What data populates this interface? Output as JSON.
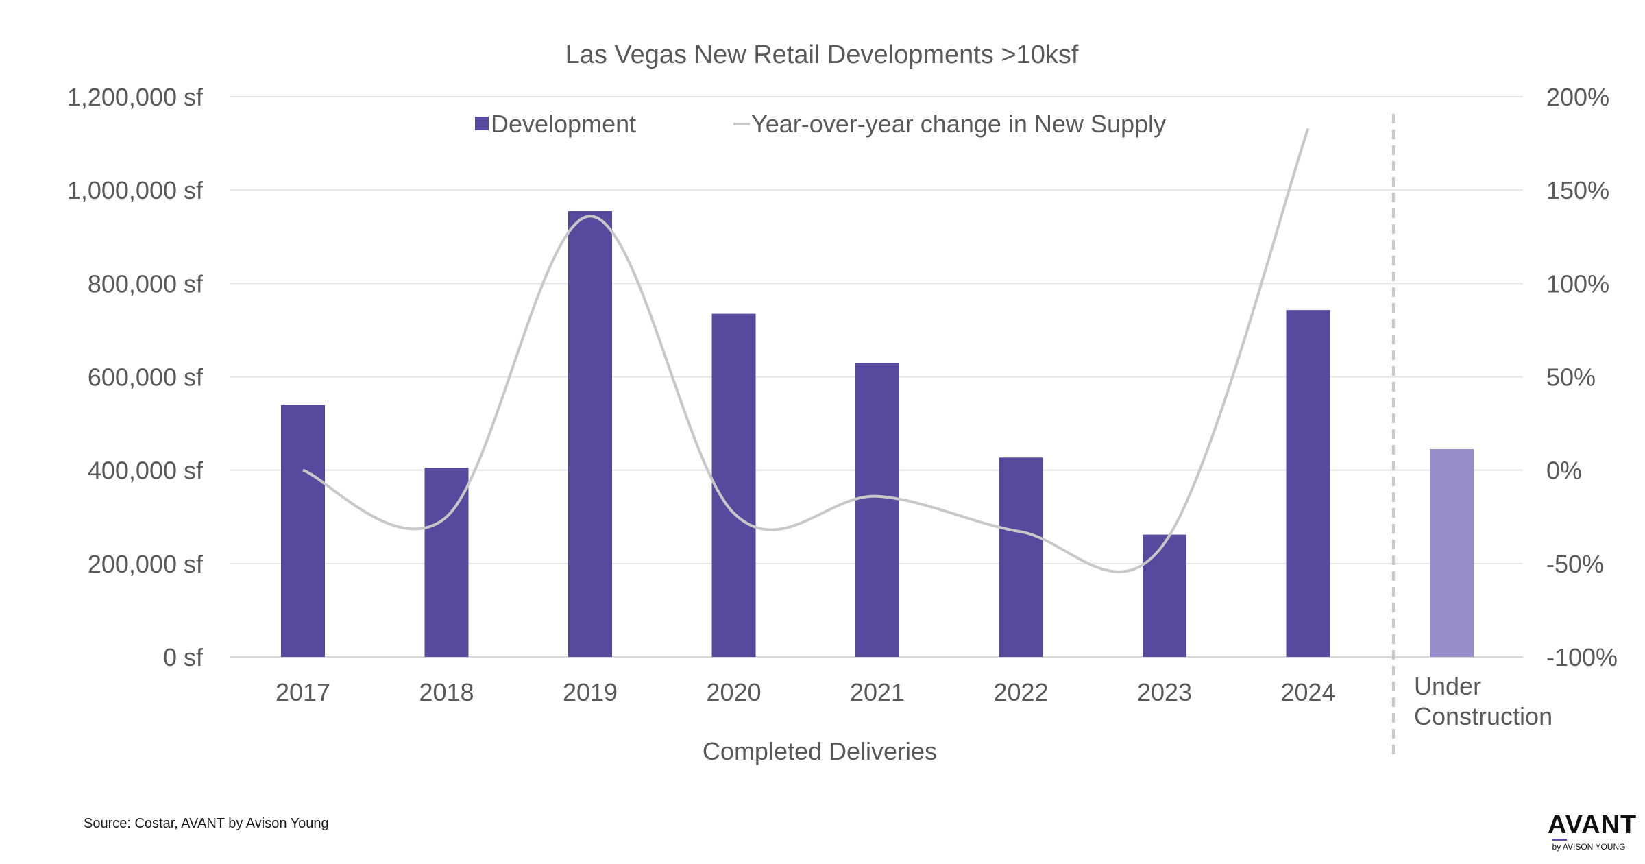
{
  "chart_data": {
    "type": "bar",
    "title": "Las Vegas New Retail Developments >10ksf",
    "categories": [
      "2017",
      "2018",
      "2019",
      "2020",
      "2021",
      "2022",
      "2023",
      "2024",
      "Under Construction"
    ],
    "category_lines": [
      [
        "2017"
      ],
      [
        "2018"
      ],
      [
        "2019"
      ],
      [
        "2020"
      ],
      [
        "2021"
      ],
      [
        "2022"
      ],
      [
        "2023"
      ],
      [
        "2024"
      ],
      [
        "Under",
        "Construction"
      ]
    ],
    "xlabel": "Completed Deliveries",
    "ylabel": "",
    "ylim": [
      0,
      1200000
    ],
    "yticks": [
      "0 sf",
      "200,000 sf",
      "400,000 sf",
      "600,000 sf",
      "800,000 sf",
      "1,000,000 sf",
      "1,200,000 sf"
    ],
    "y2lim": [
      -100,
      200
    ],
    "y2ticks": [
      "-100%",
      "-50%",
      "0%",
      "50%",
      "100%",
      "150%",
      "200%"
    ],
    "grid": true,
    "legend_position": "top",
    "divider_before_category": "Under Construction",
    "series": [
      {
        "name": "Development",
        "type": "bar",
        "axis": "left",
        "color": "#574a9e",
        "values": [
          540000,
          405000,
          955000,
          735000,
          630000,
          427000,
          262000,
          743000,
          445000
        ],
        "highlight": {
          "category": "Under Construction",
          "color": "#978dc9"
        }
      },
      {
        "name": "Year-over-year change in New Supply",
        "type": "line",
        "axis": "right",
        "color": "#c8c8c8",
        "values": [
          0,
          -25,
          136,
          -23,
          -14,
          -33,
          -39,
          183,
          null
        ]
      }
    ]
  },
  "footer": {
    "source": "Source: Costar, AVANT by Avison Young",
    "logo_main": "AVANT",
    "logo_sub": "by AVISON YOUNG"
  }
}
